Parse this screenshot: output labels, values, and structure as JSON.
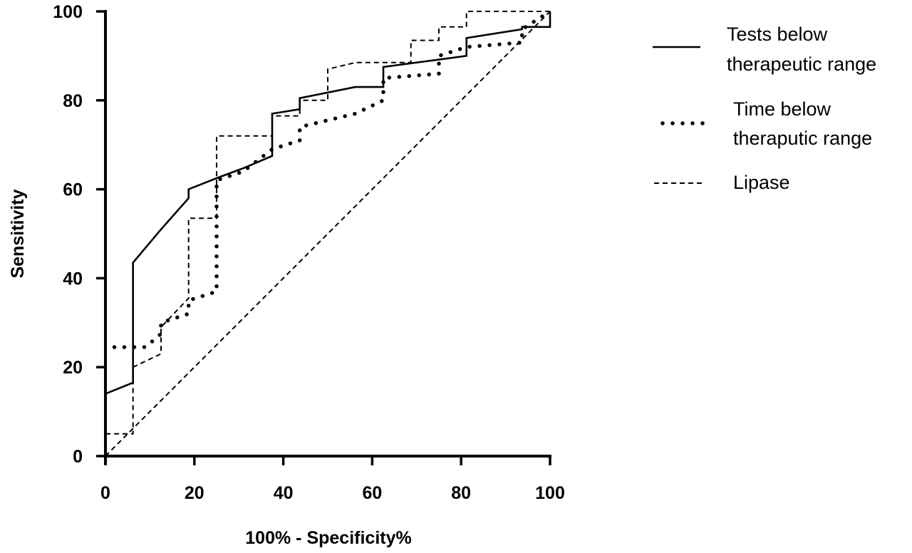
{
  "chart_data": {
    "type": "line",
    "title": "",
    "xlabel": "100% - Specificity%",
    "ylabel": "Sensitivity",
    "xlim": [
      0,
      100
    ],
    "ylim": [
      0,
      100
    ],
    "xticks": [
      0,
      20,
      40,
      60,
      80,
      100
    ],
    "yticks": [
      0,
      20,
      40,
      60,
      80,
      100
    ],
    "grid": false,
    "legend_position": "right",
    "series": [
      {
        "name": "Tests below therapeutic range",
        "style": "solid",
        "legend_lines": [
          "Tests below",
          "therapeutic range"
        ],
        "points": [
          [
            0,
            14
          ],
          [
            6.2,
            16.5
          ],
          [
            6.2,
            43.5
          ],
          [
            12.5,
            51
          ],
          [
            18.7,
            58
          ],
          [
            18.7,
            60
          ],
          [
            25,
            62.5
          ],
          [
            31.2,
            64.8
          ],
          [
            37.5,
            67.5
          ],
          [
            37.5,
            77
          ],
          [
            43.7,
            78
          ],
          [
            43.7,
            80.5
          ],
          [
            56.2,
            83
          ],
          [
            62.5,
            83
          ],
          [
            62.5,
            87.5
          ],
          [
            81.2,
            90
          ],
          [
            81.2,
            94
          ],
          [
            93.7,
            96
          ],
          [
            93.7,
            96.5
          ],
          [
            100,
            96.5
          ],
          [
            100,
            100
          ]
        ]
      },
      {
        "name": "Time below theraputic range",
        "style": "dotted",
        "legend_lines": [
          "Time below",
          "theraputic range"
        ],
        "points": [
          [
            2,
            24.5
          ],
          [
            9,
            24.5
          ],
          [
            12.5,
            27.5
          ],
          [
            12.5,
            30
          ],
          [
            18.7,
            32
          ],
          [
            18.7,
            35
          ],
          [
            25,
            37
          ],
          [
            25,
            62
          ],
          [
            31,
            64
          ],
          [
            37.5,
            69
          ],
          [
            43.7,
            71
          ],
          [
            43.7,
            74
          ],
          [
            56.2,
            77
          ],
          [
            62.5,
            80
          ],
          [
            62.5,
            85
          ],
          [
            75,
            86
          ],
          [
            75,
            90
          ],
          [
            81.2,
            92
          ],
          [
            93.7,
            93
          ],
          [
            93.7,
            96
          ],
          [
            100,
            100
          ]
        ]
      },
      {
        "name": "Lipase",
        "style": "dashed",
        "legend_lines": [
          "Lipase"
        ],
        "points": [
          [
            0,
            5
          ],
          [
            6.2,
            5
          ],
          [
            6.2,
            20
          ],
          [
            12.5,
            23
          ],
          [
            12.5,
            29
          ],
          [
            18.7,
            35.5
          ],
          [
            18.7,
            53.5
          ],
          [
            25,
            53.5
          ],
          [
            25,
            72
          ],
          [
            37.5,
            72
          ],
          [
            37.5,
            76.5
          ],
          [
            43.7,
            76.5
          ],
          [
            43.7,
            80
          ],
          [
            50,
            80
          ],
          [
            50,
            87
          ],
          [
            56.2,
            88.5
          ],
          [
            62.5,
            88.5
          ],
          [
            68.7,
            88.5
          ],
          [
            68.7,
            93.5
          ],
          [
            75,
            93.5
          ],
          [
            75,
            96.5
          ],
          [
            81.2,
            96.5
          ],
          [
            81.2,
            100
          ],
          [
            100,
            100
          ]
        ]
      },
      {
        "name": "Reference",
        "style": "dashed",
        "in_legend": false,
        "points": [
          [
            0,
            0
          ],
          [
            100,
            100
          ]
        ]
      }
    ]
  }
}
